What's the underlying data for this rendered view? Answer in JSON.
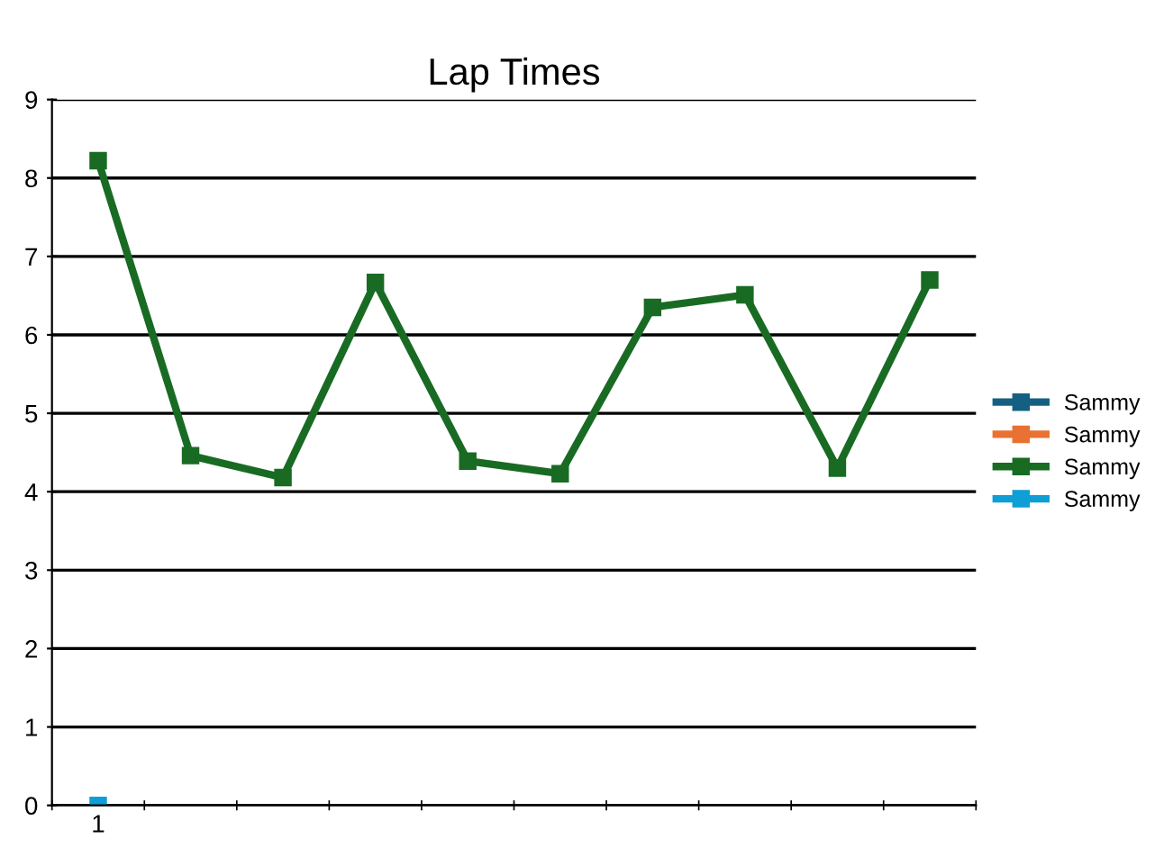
{
  "chart_data": {
    "type": "line",
    "title": "Lap Times",
    "categories": [
      "1",
      null,
      null,
      null,
      null,
      null,
      null,
      null,
      null,
      null
    ],
    "series": [
      {
        "name": "Sammy",
        "color": "#156082",
        "values": [
          null,
          null,
          null,
          null,
          null,
          null,
          null,
          null,
          null,
          null
        ]
      },
      {
        "name": "Sammy",
        "color": "#e97132",
        "values": [
          null,
          null,
          null,
          null,
          null,
          null,
          null,
          null,
          null,
          null
        ]
      },
      {
        "name": "Sammy",
        "color": "#196b24",
        "values": [
          8.22,
          4.46,
          4.18,
          6.67,
          4.39,
          4.23,
          6.35,
          6.51,
          4.3,
          6.7
        ]
      },
      {
        "name": "Sammy",
        "color": "#0f9ed5",
        "values": [
          0,
          null,
          null,
          null,
          null,
          null,
          null,
          null,
          null,
          null
        ]
      }
    ],
    "ylim": [
      0,
      9
    ],
    "yticks": [
      0,
      1,
      2,
      3,
      4,
      5,
      6,
      7,
      8,
      9
    ],
    "grid": "y",
    "legend": "right",
    "marker": "square",
    "line_style": "solid"
  }
}
